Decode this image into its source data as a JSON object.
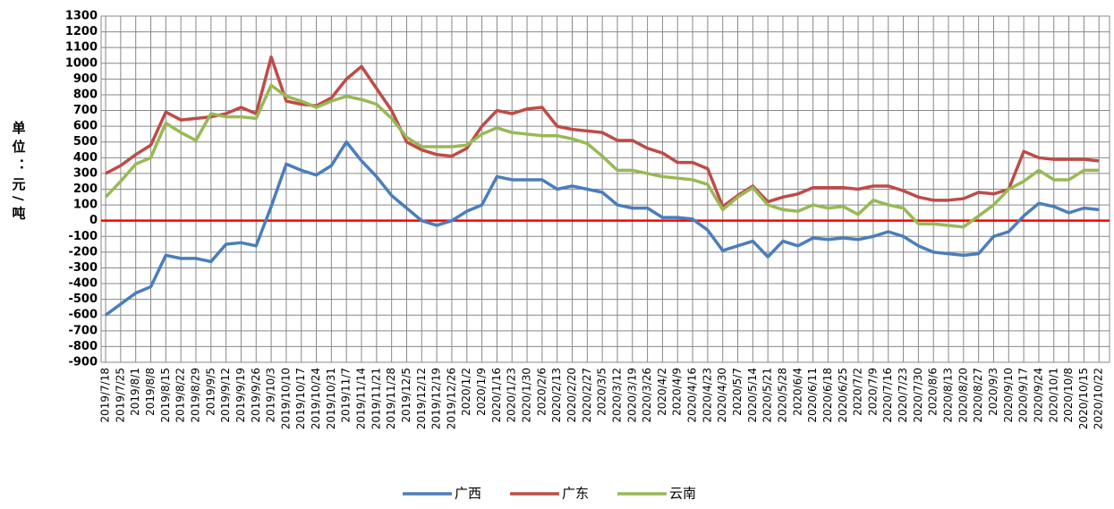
{
  "chart_data": {
    "type": "line",
    "y_label": "单位：元/吨",
    "categories": [
      "2019/7/18",
      "2019/7/25",
      "2019/8/1",
      "2019/8/8",
      "2019/8/15",
      "2019/8/22",
      "2019/8/29",
      "2019/9/5",
      "2019/9/12",
      "2019/9/19",
      "2019/9/26",
      "2019/10/3",
      "2019/10/10",
      "2019/10/17",
      "2019/10/24",
      "2019/10/31",
      "2019/11/7",
      "2019/11/14",
      "2019/11/21",
      "2019/11/28",
      "2019/12/5",
      "2019/12/12",
      "2019/12/19",
      "2019/12/26",
      "2020/1/2",
      "2020/1/9",
      "2020/1/16",
      "2020/1/23",
      "2020/1/30",
      "2020/2/6",
      "2020/2/13",
      "2020/2/20",
      "2020/2/27",
      "2020/3/5",
      "2020/3/12",
      "2020/3/19",
      "2020/3/26",
      "2020/4/2",
      "2020/4/9",
      "2020/4/16",
      "2020/4/23",
      "2020/4/30",
      "2020/5/7",
      "2020/5/14",
      "2020/5/21",
      "2020/5/28",
      "2020/6/4",
      "2020/6/11",
      "2020/6/18",
      "2020/6/25",
      "2020/7/2",
      "2020/7/9",
      "2020/7/16",
      "2020/7/23",
      "2020/7/30",
      "2020/8/6",
      "2020/8/13",
      "2020/8/20",
      "2020/8/27",
      "2020/9/3",
      "2020/9/10",
      "2020/9/17",
      "2020/9/24",
      "2020/10/1",
      "2020/10/8",
      "2020/10/15",
      "2020/10/22"
    ],
    "series": [
      {
        "name": "广西",
        "color": "#4a7ebb",
        "values": [
          -600,
          -530,
          -460,
          -420,
          -220,
          -240,
          -240,
          -260,
          -150,
          -140,
          -160,
          90,
          360,
          320,
          290,
          350,
          500,
          380,
          280,
          160,
          80,
          0,
          -30,
          0,
          60,
          100,
          280,
          260,
          260,
          260,
          200,
          220,
          200,
          180,
          100,
          80,
          80,
          20,
          20,
          10,
          -60,
          -190,
          -160,
          -130,
          -230,
          -130,
          -160,
          -110,
          -120,
          -110,
          -120,
          -100,
          -70,
          -100,
          -160,
          -200,
          -210,
          -220,
          -210,
          -100,
          -70,
          30,
          110,
          90,
          50,
          80,
          70
        ]
      },
      {
        "name": "广东",
        "color": "#be4b48",
        "values": [
          300,
          350,
          420,
          480,
          690,
          640,
          650,
          660,
          680,
          720,
          680,
          1040,
          760,
          740,
          730,
          780,
          900,
          980,
          840,
          700,
          500,
          450,
          420,
          410,
          460,
          600,
          700,
          680,
          710,
          720,
          600,
          580,
          570,
          560,
          510,
          510,
          460,
          430,
          370,
          370,
          330,
          90,
          160,
          220,
          120,
          150,
          170,
          210,
          210,
          210,
          200,
          220,
          220,
          190,
          150,
          130,
          130,
          140,
          180,
          170,
          200,
          440,
          400,
          390,
          390,
          390,
          380
        ]
      },
      {
        "name": "云南",
        "color": "#98b954",
        "values": [
          150,
          250,
          360,
          400,
          620,
          560,
          510,
          680,
          660,
          660,
          650,
          860,
          790,
          760,
          720,
          760,
          790,
          770,
          740,
          650,
          530,
          470,
          470,
          470,
          480,
          550,
          590,
          560,
          550,
          540,
          540,
          520,
          490,
          410,
          320,
          320,
          300,
          280,
          270,
          260,
          230,
          70,
          150,
          210,
          100,
          70,
          60,
          100,
          80,
          90,
          40,
          130,
          100,
          80,
          -20,
          -20,
          -30,
          -40,
          30,
          100,
          200,
          250,
          320,
          260,
          260,
          320,
          320
        ]
      }
    ],
    "reference_lines": [
      {
        "value": 0,
        "color": "#ff0000"
      }
    ],
    "ylim": [
      -900,
      1300
    ],
    "yticks": [
      -900,
      -800,
      -700,
      -600,
      -500,
      -400,
      -300,
      -200,
      -100,
      0,
      100,
      200,
      300,
      400,
      500,
      600,
      700,
      800,
      900,
      1000,
      1100,
      1200,
      1300
    ],
    "grid": true
  }
}
